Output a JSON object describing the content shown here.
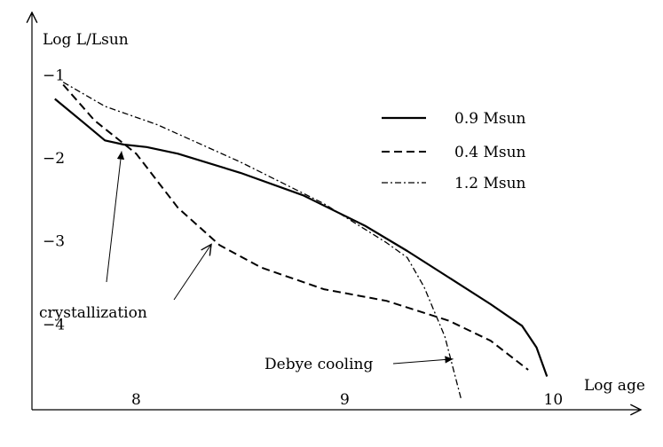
{
  "chart_data": {
    "type": "line",
    "title": "",
    "xlabel": "Log age",
    "ylabel": "Log L/Lsun",
    "xlim": [
      7.5,
      10.42
    ],
    "ylim": [
      -5.03,
      -0.25
    ],
    "x_ticks": [
      {
        "value": 8,
        "label": "8"
      },
      {
        "value": 9,
        "label": "9"
      },
      {
        "value": 10,
        "label": "10"
      }
    ],
    "y_ticks": [
      {
        "value": -1,
        "label": "−1"
      },
      {
        "value": -2,
        "label": "−2"
      },
      {
        "value": -3,
        "label": "−3"
      },
      {
        "value": -4,
        "label": "−4"
      }
    ],
    "grid": false,
    "legend_position": "top-right",
    "series": [
      {
        "name": "0.9 Msun",
        "style": "solid",
        "points": [
          [
            7.61,
            -1.29
          ],
          [
            7.75,
            -1.58
          ],
          [
            7.85,
            -1.79
          ],
          [
            7.94,
            -1.84
          ],
          [
            8.05,
            -1.87
          ],
          [
            8.2,
            -1.95
          ],
          [
            8.5,
            -2.18
          ],
          [
            8.8,
            -2.45
          ],
          [
            9.1,
            -2.82
          ],
          [
            9.3,
            -3.12
          ],
          [
            9.5,
            -3.44
          ],
          [
            9.7,
            -3.76
          ],
          [
            9.85,
            -4.02
          ],
          [
            9.92,
            -4.28
          ],
          [
            9.97,
            -4.63
          ]
        ]
      },
      {
        "name": "0.4 Msun",
        "style": "dashed",
        "points": [
          [
            7.65,
            -1.12
          ],
          [
            7.8,
            -1.55
          ],
          [
            8.0,
            -1.95
          ],
          [
            8.2,
            -2.6
          ],
          [
            8.4,
            -3.05
          ],
          [
            8.6,
            -3.32
          ],
          [
            8.9,
            -3.58
          ],
          [
            9.2,
            -3.72
          ],
          [
            9.5,
            -3.96
          ],
          [
            9.7,
            -4.2
          ],
          [
            9.88,
            -4.55
          ]
        ]
      },
      {
        "name": "1.2 Msun",
        "style": "dashdot",
        "points": [
          [
            7.65,
            -1.09
          ],
          [
            7.85,
            -1.38
          ],
          [
            8.1,
            -1.6
          ],
          [
            8.5,
            -2.05
          ],
          [
            8.9,
            -2.55
          ],
          [
            9.2,
            -3.02
          ],
          [
            9.3,
            -3.2
          ],
          [
            9.38,
            -3.55
          ],
          [
            9.48,
            -4.15
          ],
          [
            9.56,
            -4.92
          ]
        ]
      }
    ],
    "annotations": [
      {
        "text": "crystallization",
        "target": [
          7.93,
          -1.92
        ]
      },
      {
        "text": "crystallization",
        "target": [
          8.36,
          -3.04
        ]
      },
      {
        "text": "Debye cooling",
        "target": [
          9.52,
          -4.42
        ]
      }
    ]
  }
}
